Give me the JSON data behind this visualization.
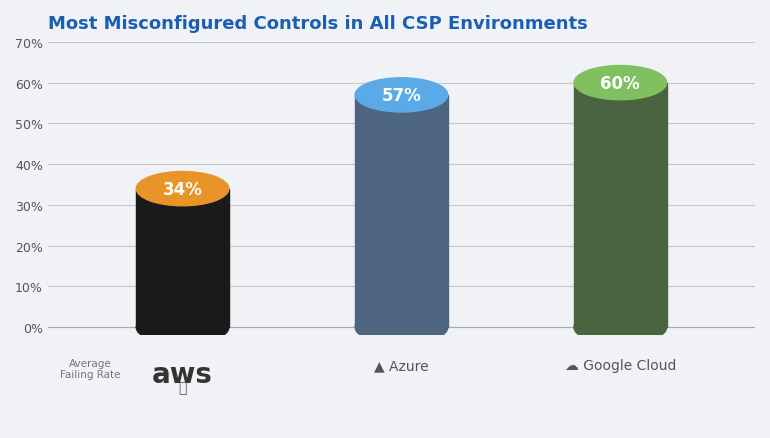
{
  "title": "Most Misconfigured Controls in All CSP Environments",
  "categories": [
    "aws",
    "Azure",
    "Google Cloud"
  ],
  "values": [
    34,
    57,
    60
  ],
  "labels": [
    "34%",
    "57%",
    "60%"
  ],
  "bar_body_colors": [
    "#1a1a1a",
    "#4d6580",
    "#4a6340"
  ],
  "bar_top_colors": [
    "#e89428",
    "#5aaae8",
    "#80c060"
  ],
  "bar_bottom_colors": [
    "#1a1a1a",
    "#4d6580",
    "#4a6340"
  ],
  "label_colors": [
    "#ffffff",
    "#ffffff",
    "#ffffff"
  ],
  "ylim": [
    0,
    70
  ],
  "yticks": [
    0,
    10,
    20,
    30,
    40,
    50,
    60,
    70
  ],
  "ytick_labels": [
    "0%",
    "10%",
    "20%",
    "30%",
    "40%",
    "50%",
    "60%",
    "70%"
  ],
  "background_color": "#f0f2f5",
  "title_color": "#1a5fb4",
  "grid_color": "#c8c8c8",
  "bar_width": 0.55,
  "ellipse_height_ratio": 0.12,
  "figsize": [
    7.7,
    4.39
  ],
  "dpi": 100,
  "x_positions": [
    1.0,
    2.3,
    3.6
  ],
  "xlim": [
    0.2,
    4.4
  ]
}
